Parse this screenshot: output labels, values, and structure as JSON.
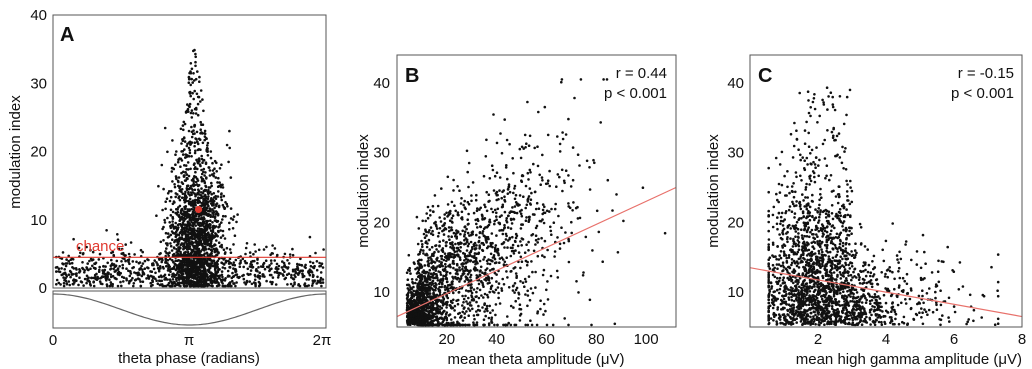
{
  "chart_data": [
    {
      "panel_letter": "A",
      "type": "scatter",
      "xlabel": "theta phase (radians)",
      "ylabel": "modulation index",
      "xlim": [
        0,
        6.2832
      ],
      "ylim": [
        0,
        40
      ],
      "x_tick_labels": [
        "0",
        "π",
        "2π"
      ],
      "y_ticks": [
        0,
        10,
        20,
        30,
        40
      ],
      "annotations": [
        "chance"
      ],
      "chance_level": 4.5,
      "mean_point": {
        "x": 3.35,
        "y": 11.5
      },
      "reference_waveform": "cosine",
      "colors": {
        "points": "#111111",
        "chance": "#e0392f",
        "mean": "#e0392f",
        "waveform": "#666666"
      }
    },
    {
      "panel_letter": "B",
      "type": "scatter",
      "xlabel": "mean theta amplitude (μV)",
      "ylabel": "modulation index",
      "xlim": [
        0,
        112
      ],
      "ylim": [
        5,
        44
      ],
      "x_ticks": [
        20,
        40,
        60,
        80,
        100
      ],
      "y_ticks": [
        10,
        20,
        30,
        40
      ],
      "annotations": [
        "r = 0.44",
        "p < 0.001"
      ],
      "fit_line": {
        "x": [
          0,
          112
        ],
        "y": [
          6.5,
          25
        ]
      },
      "colors": {
        "points": "#111111",
        "fit": "#e8716b"
      }
    },
    {
      "panel_letter": "C",
      "type": "scatter",
      "xlabel": "mean high gamma amplitude (μV)",
      "ylabel": "modulation index",
      "xlim": [
        0,
        8
      ],
      "ylim": [
        5,
        44
      ],
      "x_ticks": [
        2,
        4,
        6,
        8
      ],
      "y_ticks": [
        10,
        20,
        30,
        40
      ],
      "annotations": [
        "r = -0.15",
        "p < 0.001"
      ],
      "fit_line": {
        "x": [
          0,
          8
        ],
        "y": [
          13.5,
          6.5
        ]
      },
      "colors": {
        "points": "#111111",
        "fit": "#e8716b"
      }
    }
  ]
}
